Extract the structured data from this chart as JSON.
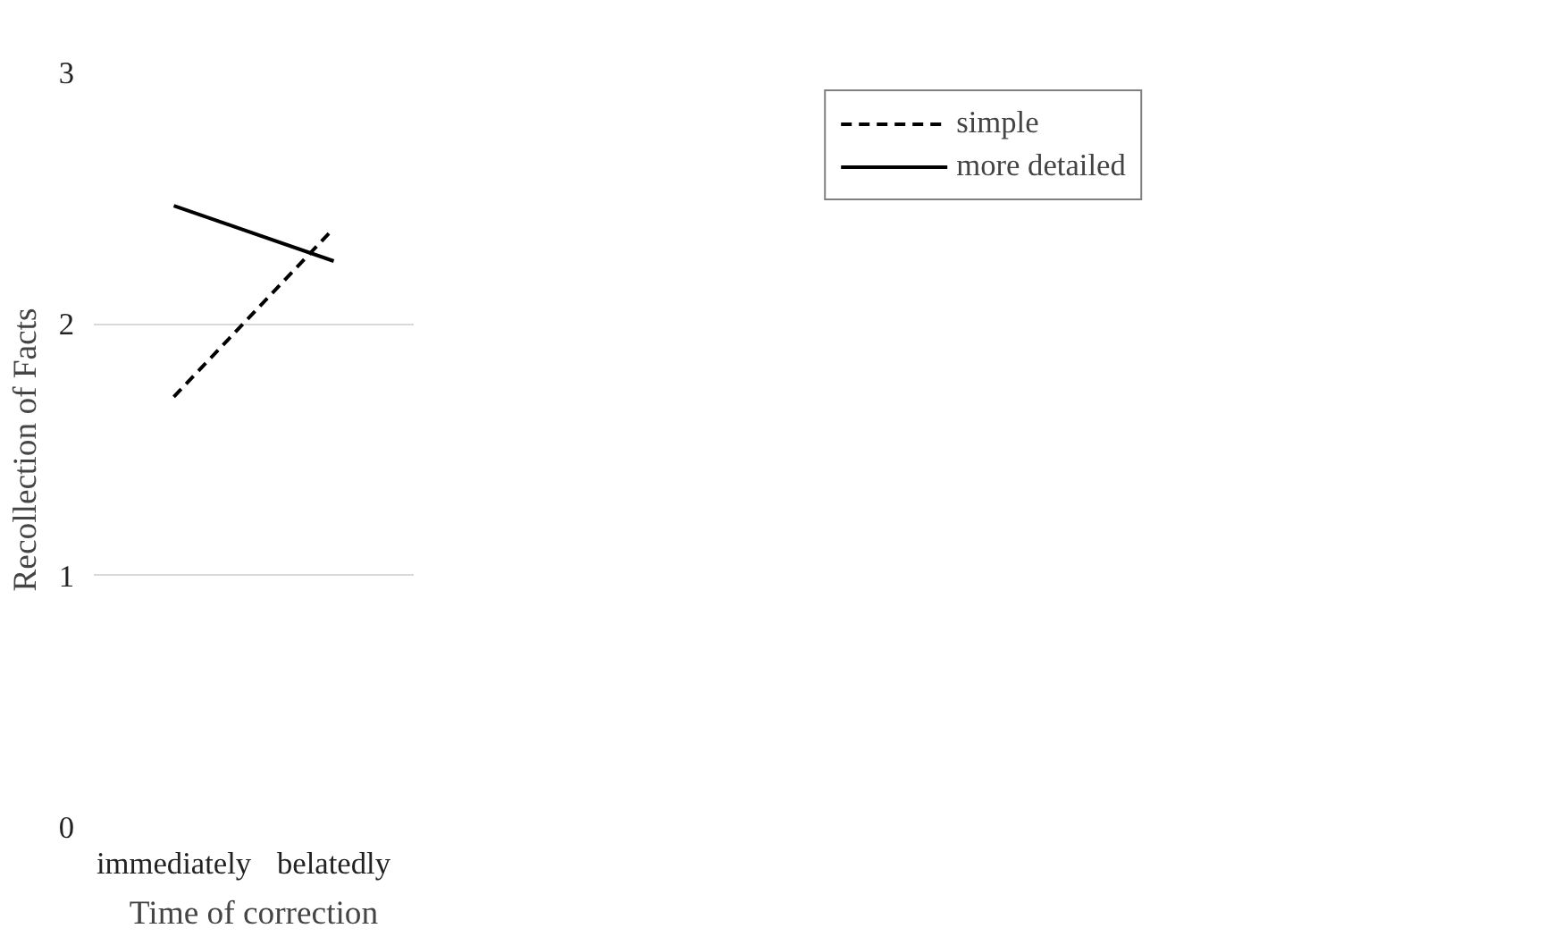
{
  "chart_data": {
    "type": "line",
    "xlabel": "Time of correction",
    "ylabel": "Recollection of Facts",
    "categories": [
      "immediately",
      "belatedly"
    ],
    "series": [
      {
        "name": "simple",
        "color": "#000000",
        "line_style": "dashed",
        "values": [
          1.71,
          2.38
        ]
      },
      {
        "name": "more detailed",
        "color": "#000000",
        "line_style": "solid",
        "values": [
          2.47,
          2.25
        ]
      }
    ],
    "ylim": [
      0,
      3
    ],
    "yticks": [
      0,
      1,
      2,
      3
    ],
    "grid": "y",
    "legend": "top right",
    "marker": "none"
  }
}
